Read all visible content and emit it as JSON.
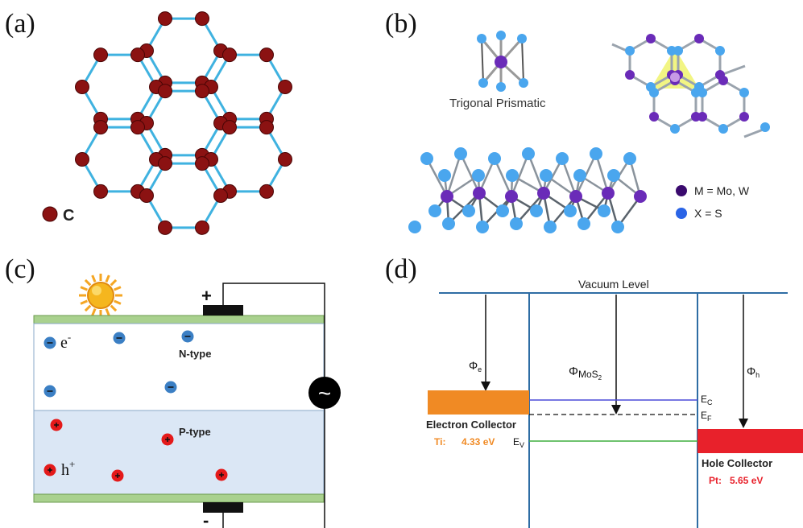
{
  "panels": {
    "a": {
      "label": "(a)",
      "legend_label": "C",
      "colors": {
        "bond": "#3fb2e0",
        "atom": "#8b1212"
      }
    },
    "b": {
      "label": "(b)",
      "caption": "Trigonal Prismatic",
      "legend": [
        {
          "label": "M = Mo, W",
          "color": "#3a0a6e"
        },
        {
          "label": "X  = S",
          "color": "#2a64e6"
        }
      ],
      "colors": {
        "metal": "#6a2bb8",
        "chalcogen": "#4aa6ee",
        "highlight": "#eef25a"
      }
    },
    "c": {
      "label": "(c)",
      "n_label": "N-type",
      "p_label": "P-type",
      "electron_label": "e",
      "electron_sup": "-",
      "hole_label": "h",
      "hole_sup": "+",
      "plus_sign": "+",
      "minus_sign": "-",
      "ac_symbol": "~",
      "colors": {
        "n_region": "#ffffff",
        "p_region": "#dbe7f5",
        "contact": "#a9d18e",
        "electron": "#3b7fc4",
        "hole": "#e41a1a",
        "sun": "#f5a623"
      }
    },
    "d": {
      "label": "(d)",
      "vacuum_label": "Vacuum Level",
      "phi_e_main": "Φ",
      "phi_e_sub": "e",
      "phi_mos2_main": "Φ",
      "phi_mos2_sub": "MoS",
      "phi_mos2_subsub": "2",
      "phi_h_main": "Φ",
      "phi_h_sub": "h",
      "ec_main": "E",
      "ec_sub": "C",
      "ef_main": "E",
      "ef_sub": "F",
      "ev_main": "E",
      "ev_sub": "V",
      "electron_collector": "Electron Collector",
      "ti_label": "Ti:",
      "ti_value": "4.33 eV",
      "hole_collector": "Hole Collector",
      "pt_label": "Pt:",
      "pt_value": "5.65 eV",
      "colors": {
        "frame": "#2e6da4",
        "ti_box": "#f08a24",
        "pt_box": "#e8212b",
        "ec_line": "#4b4bd8",
        "ev_line": "#3fae3f"
      }
    }
  }
}
